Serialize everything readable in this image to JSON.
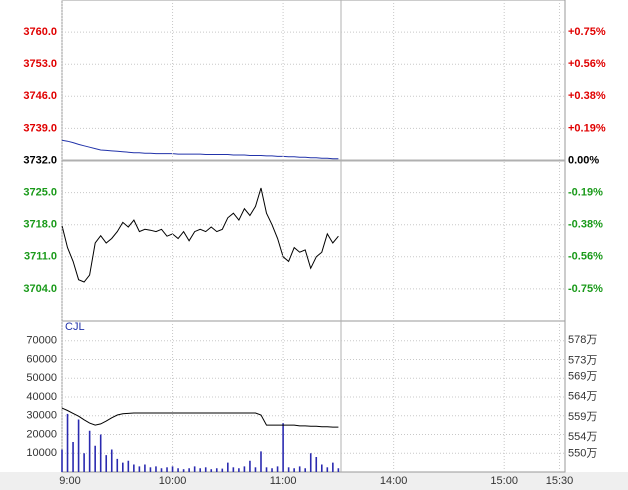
{
  "chart_data": [
    {
      "type": "line",
      "x": [
        0,
        3,
        6,
        9,
        12,
        15,
        18,
        21,
        24,
        27,
        30,
        33,
        36,
        39,
        42,
        45,
        48,
        51,
        54,
        57,
        60,
        63,
        66,
        69,
        72,
        75,
        78,
        81,
        84,
        87,
        90,
        93,
        96,
        99,
        102,
        105,
        108,
        111,
        114,
        117,
        120,
        123,
        126,
        129,
        132,
        135,
        138,
        141,
        144,
        147,
        150
      ],
      "xlim": [
        0,
        273
      ],
      "ylim": [
        3697,
        3767
      ],
      "yticks": [
        {
          "value": 3760,
          "label": "3760.0"
        },
        {
          "value": 3753,
          "label": "3753.0"
        },
        {
          "value": 3746,
          "label": "3746.0"
        },
        {
          "value": 3739,
          "label": "3739.0"
        },
        {
          "value": 3732,
          "label": "3732.0"
        },
        {
          "value": 3725,
          "label": "3725.0"
        },
        {
          "value": 3718,
          "label": "3718.0"
        },
        {
          "value": 3711,
          "label": "3711.0"
        },
        {
          "value": 3704,
          "label": "3704.0"
        }
      ],
      "y2lim": [
        3697,
        3767
      ],
      "y2ticks": [
        {
          "value": 3760,
          "label": "+0.75%"
        },
        {
          "value": 3753,
          "label": "+0.56%"
        },
        {
          "value": 3746,
          "label": "+0.38%"
        },
        {
          "value": 3739,
          "label": "+0.19%"
        },
        {
          "value": 3732,
          "label": "0.00%"
        },
        {
          "value": 3725,
          "label": "-0.19%"
        },
        {
          "value": 3718,
          "label": "-0.38%"
        },
        {
          "value": 3711,
          "label": "-0.56%"
        },
        {
          "value": 3704,
          "label": "-0.75%"
        }
      ],
      "base": 3732,
      "up_color": "#e00000",
      "down_color": "#1a9a1a",
      "flat_color": "#000000",
      "grid": true,
      "series": [
        {
          "type": "line",
          "color": "#000000",
          "values": [
            3717.8,
            3713,
            3710,
            3706,
            3705.5,
            3707,
            3714,
            3715.6,
            3714,
            3715,
            3716.5,
            3718.5,
            3717.5,
            3719,
            3716.5,
            3717,
            3716.8,
            3716.5,
            3717,
            3715.5,
            3716,
            3715,
            3716.5,
            3714.5,
            3716.5,
            3717,
            3716.5,
            3717.5,
            3716.5,
            3717,
            3719.5,
            3720.5,
            3719,
            3721.5,
            3720,
            3722,
            3726,
            3720.5,
            3718,
            3715,
            3711,
            3710,
            3713,
            3712,
            3712.5,
            3708.5,
            3711,
            3712,
            3716,
            3714,
            3715.5
          ]
        },
        {
          "type": "line",
          "color": "#2233aa",
          "values": [
            3736.4,
            3736.2,
            3735.9,
            3735.5,
            3735.2,
            3734.9,
            3734.6,
            3734.3,
            3734.2,
            3734.1,
            3734,
            3733.9,
            3733.8,
            3733.7,
            3733.7,
            3733.6,
            3733.6,
            3733.5,
            3733.5,
            3733.5,
            3733.5,
            3733.4,
            3733.4,
            3733.4,
            3733.4,
            3733.4,
            3733.3,
            3733.3,
            3733.3,
            3733.3,
            3733.3,
            3733.2,
            3733.2,
            3733.2,
            3733.1,
            3733.1,
            3733.1,
            3733,
            3733,
            3732.9,
            3732.9,
            3732.8,
            3732.8,
            3732.7,
            3732.7,
            3732.6,
            3732.6,
            3732.5,
            3732.5,
            3732.4,
            3732.4
          ]
        }
      ]
    },
    {
      "type": "bar",
      "title": "CJL",
      "x": [
        0,
        3,
        6,
        9,
        12,
        15,
        18,
        21,
        24,
        27,
        30,
        33,
        36,
        39,
        42,
        45,
        48,
        51,
        54,
        57,
        60,
        63,
        66,
        69,
        72,
        75,
        78,
        81,
        84,
        87,
        90,
        93,
        96,
        99,
        102,
        105,
        108,
        111,
        114,
        117,
        120,
        123,
        126,
        129,
        132,
        135,
        138,
        141,
        144,
        147,
        150
      ],
      "xlim": [
        0,
        273
      ],
      "xticks": [
        {
          "value": 0,
          "label": "9:00"
        },
        {
          "value": 60,
          "label": "10:00"
        },
        {
          "value": 120,
          "label": "11:00"
        },
        {
          "value": 180,
          "label": "14:00"
        },
        {
          "value": 240,
          "label": "15:00"
        },
        {
          "value": 270,
          "label": "15:30"
        }
      ],
      "ylim": [
        0,
        80000
      ],
      "yticks": [
        70000,
        60000,
        50000,
        40000,
        30000,
        20000,
        10000
      ],
      "y2lim": [
        545.4,
        582.5
      ],
      "y2ticks": [
        {
          "value": 578,
          "label": "578万"
        },
        {
          "value": 573,
          "label": "573万"
        },
        {
          "value": 569,
          "label": "569万"
        },
        {
          "value": 564,
          "label": "564万"
        },
        {
          "value": 559,
          "label": "559万"
        },
        {
          "value": 554,
          "label": "554万"
        },
        {
          "value": 550,
          "label": "550万"
        }
      ],
      "grid": true,
      "series": [
        {
          "type": "bar",
          "color": "#2a2ab0",
          "values": [
            12000,
            31000,
            16000,
            28000,
            10000,
            22000,
            14000,
            20000,
            9000,
            12000,
            7000,
            5000,
            6000,
            4000,
            3000,
            4000,
            2500,
            3000,
            2000,
            2500,
            3000,
            2000,
            1500,
            2000,
            3000,
            2000,
            2500,
            1500,
            2000,
            1800,
            5000,
            2500,
            2000,
            3000,
            6000,
            2500,
            11000,
            2500,
            2000,
            3000,
            26000,
            2500,
            2000,
            3000,
            2000,
            10000,
            8000,
            4000,
            2500,
            5000,
            2000
          ]
        },
        {
          "type": "line",
          "axis": "y2",
          "color": "#000000",
          "values": [
            561.2,
            560.6,
            559.9,
            559.2,
            558.3,
            557.5,
            557,
            557.3,
            558,
            558.8,
            559.5,
            559.8,
            559.9,
            560,
            560,
            560,
            560,
            560,
            560,
            560,
            560,
            560,
            560,
            560,
            560,
            560,
            560,
            560,
            560,
            560,
            560,
            560,
            560,
            560,
            560,
            560,
            559.5,
            557,
            557,
            557,
            557,
            557,
            557,
            556.8,
            556.8,
            556.7,
            556.7,
            556.6,
            556.6,
            556.5,
            556.5
          ]
        }
      ]
    }
  ]
}
